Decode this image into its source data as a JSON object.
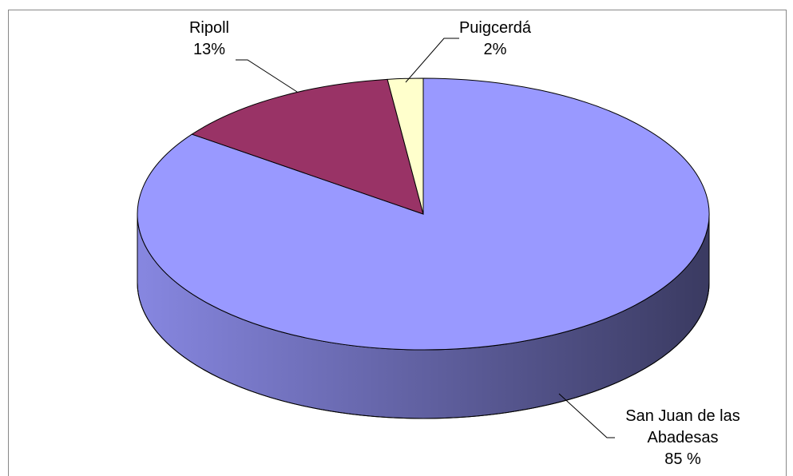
{
  "chart_data": {
    "type": "pie3d",
    "categories": [
      "San Juan de las Abadesas",
      "Ripoll",
      "Puigcerdá"
    ],
    "values": [
      85,
      13,
      2
    ],
    "value_labels": [
      "85 %",
      "13%",
      "2%"
    ],
    "colors": [
      "#9999ff",
      "#993366",
      "#ffffcc"
    ]
  }
}
